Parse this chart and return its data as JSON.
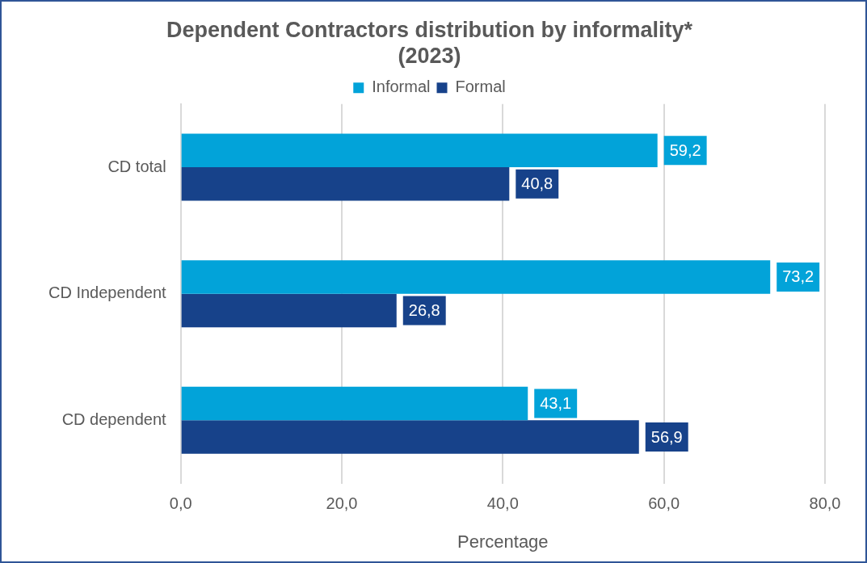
{
  "chart_data": {
    "type": "bar",
    "orientation": "horizontal",
    "title": "Dependent Contractors distribution by informality*\n(2023)",
    "xlabel": "Percentage",
    "categories": [
      "CD total",
      "CD Independent",
      "CD dependent"
    ],
    "series": [
      {
        "name": "Informal",
        "color": "#02a3d9",
        "values": [
          59.2,
          73.2,
          43.1
        ],
        "value_labels": [
          "59,2",
          "73,2",
          "43,1"
        ]
      },
      {
        "name": "Formal",
        "color": "#17428a",
        "values": [
          40.8,
          26.8,
          56.9
        ],
        "value_labels": [
          "40,8",
          "26,8",
          "56,9"
        ]
      }
    ],
    "xlim": [
      0,
      80
    ],
    "xticks": [
      {
        "value": 0,
        "label": "0,0"
      },
      {
        "value": 20,
        "label": "20,0"
      },
      {
        "value": 40,
        "label": "40,0"
      },
      {
        "value": 60,
        "label": "60,0"
      },
      {
        "value": 80,
        "label": "80,0"
      }
    ],
    "grid": "x",
    "legend": "top"
  }
}
